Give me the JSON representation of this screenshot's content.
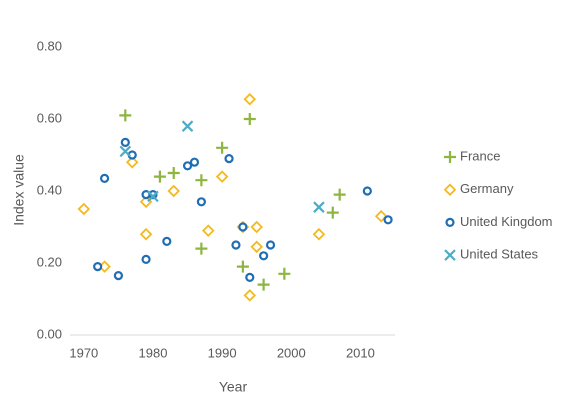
{
  "chart_data": {
    "type": "scatter",
    "x_label": "Year",
    "y_label": "Index value",
    "xlim": [
      1968,
      2015
    ],
    "xticks": [
      1970,
      1980,
      1990,
      2000,
      2010
    ],
    "ylim": [
      0,
      0.9
    ],
    "yticks": [
      {
        "value": 0,
        "label": "0.00"
      },
      {
        "value": 0.2,
        "label": "0.20"
      },
      {
        "value": 0.4,
        "label": "0.40"
      },
      {
        "value": 0.6,
        "label": "0.60"
      },
      {
        "value": 0.8,
        "label": "0.80"
      }
    ],
    "grid": false,
    "legend": "right",
    "series": [
      {
        "name": "France",
        "color": "#8db53f",
        "marker": "plus",
        "x": [
          1976,
          1981,
          1983,
          1987,
          1987,
          1990,
          1994,
          1993,
          1996,
          1999,
          2006,
          2007
        ],
        "values": [
          0.61,
          0.44,
          0.45,
          0.43,
          0.24,
          0.52,
          0.6,
          0.19,
          0.14,
          0.17,
          0.34,
          0.39
        ]
      },
      {
        "name": "Germany",
        "color": "#f4b920",
        "marker": "diamond",
        "x": [
          1970,
          1973,
          1977,
          1979,
          1979,
          1983,
          1988,
          1990,
          1993,
          1994,
          1995,
          1995,
          1994,
          2004,
          2013
        ],
        "values": [
          0.35,
          0.19,
          0.48,
          0.37,
          0.28,
          0.4,
          0.29,
          0.44,
          0.3,
          0.655,
          0.3,
          0.245,
          0.11,
          0.28,
          0.33
        ]
      },
      {
        "name": "United Kingdom",
        "color": "#1f6db3",
        "marker": "circle",
        "x": [
          1972,
          1973,
          1975,
          1976,
          1977,
          1979,
          1980,
          1979,
          1982,
          1985,
          1986,
          1987,
          1991,
          1992,
          1993,
          1994,
          1996,
          1997,
          2011,
          2014
        ],
        "values": [
          0.19,
          0.435,
          0.165,
          0.535,
          0.5,
          0.39,
          0.39,
          0.21,
          0.26,
          0.47,
          0.48,
          0.37,
          0.49,
          0.25,
          0.3,
          0.16,
          0.22,
          0.25,
          0.4,
          0.32
        ]
      },
      {
        "name": "United States",
        "color": "#4bacc6",
        "marker": "cross",
        "x": [
          1976,
          1980,
          1985,
          2004
        ],
        "values": [
          0.51,
          0.385,
          0.58,
          0.355
        ]
      }
    ]
  }
}
